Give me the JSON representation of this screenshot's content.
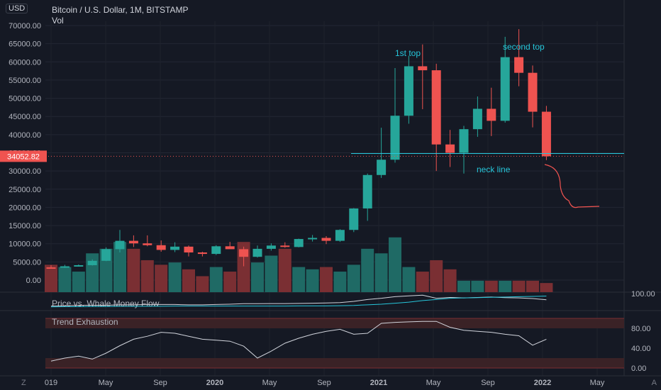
{
  "header": {
    "title": "Bitcoin / U.S. Dollar, 1M, BITSTAMP",
    "vol_label": "Vol",
    "currency_badge": "USD",
    "corner_z": "Z",
    "corner_a": "A"
  },
  "colors": {
    "background": "#151924",
    "up": "#26a69a",
    "down": "#ef5350",
    "vol_up": "#1f6a65",
    "vol_down": "#7a2f33",
    "annotation": "#26c6da",
    "text": "#b2b5be"
  },
  "chart_data": [
    {
      "type": "candlestick",
      "title": "Bitcoin / U.S. Dollar, 1M, BITSTAMP",
      "y_ticks": [
        "70000.00",
        "65000.00",
        "60000.00",
        "55000.00",
        "50000.00",
        "45000.00",
        "40000.00",
        "35000.00",
        "30000.00",
        "25000.00",
        "20000.00",
        "15000.00",
        "10000.00",
        "5000.00",
        "0.00"
      ],
      "x_tick_labels": [
        "019",
        "May",
        "Sep",
        "2020",
        "May",
        "Sep",
        "2021",
        "May",
        "Sep",
        "2022",
        "May"
      ],
      "last_price_label": "34052.82",
      "candles": [
        {
          "o": 3500,
          "h": 4100,
          "l": 3300,
          "c": 3400
        },
        {
          "o": 3400,
          "h": 4200,
          "l": 3350,
          "c": 3800
        },
        {
          "o": 3800,
          "h": 4300,
          "l": 3700,
          "c": 4100
        },
        {
          "o": 4100,
          "h": 5700,
          "l": 4000,
          "c": 5300
        },
        {
          "o": 5300,
          "h": 9000,
          "l": 5200,
          "c": 8500
        },
        {
          "o": 8500,
          "h": 13800,
          "l": 7600,
          "c": 10800
        },
        {
          "o": 10800,
          "h": 12300,
          "l": 9100,
          "c": 10100
        },
        {
          "o": 10100,
          "h": 12300,
          "l": 9300,
          "c": 9600
        },
        {
          "o": 9600,
          "h": 10900,
          "l": 7800,
          "c": 8300
        },
        {
          "o": 8300,
          "h": 10400,
          "l": 7700,
          "c": 9200
        },
        {
          "o": 9200,
          "h": 9500,
          "l": 6500,
          "c": 7600
        },
        {
          "o": 7600,
          "h": 7800,
          "l": 6500,
          "c": 7200
        },
        {
          "o": 7200,
          "h": 9600,
          "l": 6900,
          "c": 9300
        },
        {
          "o": 9300,
          "h": 10500,
          "l": 8600,
          "c": 8500
        },
        {
          "o": 8500,
          "h": 9200,
          "l": 3800,
          "c": 6400
        },
        {
          "o": 6400,
          "h": 9500,
          "l": 6200,
          "c": 8600
        },
        {
          "o": 8600,
          "h": 10100,
          "l": 8100,
          "c": 9500
        },
        {
          "o": 9500,
          "h": 10400,
          "l": 8900,
          "c": 9100
        },
        {
          "o": 9100,
          "h": 11400,
          "l": 9000,
          "c": 11300
        },
        {
          "o": 11300,
          "h": 12400,
          "l": 10600,
          "c": 11600
        },
        {
          "o": 11600,
          "h": 12100,
          "l": 9900,
          "c": 10800
        },
        {
          "o": 10800,
          "h": 14000,
          "l": 10500,
          "c": 13800
        },
        {
          "o": 13800,
          "h": 19800,
          "l": 13200,
          "c": 19700
        },
        {
          "o": 19700,
          "h": 29300,
          "l": 16300,
          "c": 28900
        },
        {
          "o": 28900,
          "h": 41900,
          "l": 28100,
          "c": 33100
        },
        {
          "o": 33100,
          "h": 58300,
          "l": 32300,
          "c": 45200
        },
        {
          "o": 45200,
          "h": 61700,
          "l": 43000,
          "c": 58800
        },
        {
          "o": 58800,
          "h": 64800,
          "l": 47000,
          "c": 57700
        },
        {
          "o": 57700,
          "h": 59500,
          "l": 30000,
          "c": 37300
        },
        {
          "o": 37300,
          "h": 41300,
          "l": 31100,
          "c": 35000
        },
        {
          "o": 35000,
          "h": 42400,
          "l": 29300,
          "c": 41500
        },
        {
          "o": 41500,
          "h": 50500,
          "l": 39400,
          "c": 47100
        },
        {
          "o": 47100,
          "h": 52900,
          "l": 39600,
          "c": 43800
        },
        {
          "o": 43800,
          "h": 66900,
          "l": 43300,
          "c": 61300
        },
        {
          "o": 61300,
          "h": 69000,
          "l": 53300,
          "c": 57000
        },
        {
          "o": 57000,
          "h": 59000,
          "l": 42000,
          "c": 46300
        },
        {
          "o": 46300,
          "h": 47900,
          "l": 33000,
          "c": 34052.82
        }
      ],
      "annotations": [
        {
          "text": "1st top"
        },
        {
          "text": "second top"
        },
        {
          "text": "neck line"
        }
      ]
    },
    {
      "type": "bar",
      "title": "Vol",
      "values": [
        6.0,
        5.5,
        4.5,
        8.5,
        9.5,
        11.0,
        9.5,
        7.0,
        6.0,
        6.5,
        5.0,
        3.5,
        5.5,
        4.5,
        11.0,
        6.5,
        8.0,
        9.5,
        5.5,
        5.0,
        5.5,
        4.5,
        6.0,
        9.5,
        8.5,
        12.0,
        5.5,
        4.5,
        7.0,
        5.0,
        2.5,
        2.5,
        2.5,
        2.5,
        2.5,
        2.5,
        2.0
      ]
    },
    {
      "type": "line",
      "title": "Price vs. Whale Money Flow",
      "y_ticks": [
        "100.00"
      ],
      "series": [
        {
          "values": [
            20,
            22,
            25,
            25,
            25,
            28,
            28,
            30,
            30,
            30,
            28,
            28,
            30,
            32,
            35,
            35,
            36,
            36,
            37,
            38,
            40,
            42,
            50,
            62,
            70,
            80,
            85,
            90,
            70,
            75,
            72,
            75,
            78,
            74,
            72,
            68,
            60
          ]
        },
        {
          "values": [
            15,
            16,
            16,
            17,
            17,
            18,
            18,
            19,
            19,
            20,
            20,
            20,
            20,
            20,
            20,
            20,
            20,
            20,
            21,
            21,
            21,
            22,
            24,
            28,
            32,
            38,
            45,
            55,
            62,
            70,
            72,
            74,
            76,
            78,
            80,
            82,
            84
          ]
        }
      ]
    },
    {
      "type": "line",
      "title": "Trend Exhaustion",
      "y_ticks": [
        "80.00",
        "40.00",
        "0.00"
      ],
      "series": [
        {
          "values": [
            14,
            20,
            24,
            18,
            30,
            45,
            58,
            64,
            72,
            70,
            64,
            58,
            56,
            54,
            44,
            20,
            34,
            50,
            60,
            68,
            74,
            78,
            68,
            70,
            90,
            92,
            93,
            94,
            94,
            82,
            76,
            74,
            72,
            68,
            65,
            46,
            58
          ]
        }
      ]
    }
  ]
}
